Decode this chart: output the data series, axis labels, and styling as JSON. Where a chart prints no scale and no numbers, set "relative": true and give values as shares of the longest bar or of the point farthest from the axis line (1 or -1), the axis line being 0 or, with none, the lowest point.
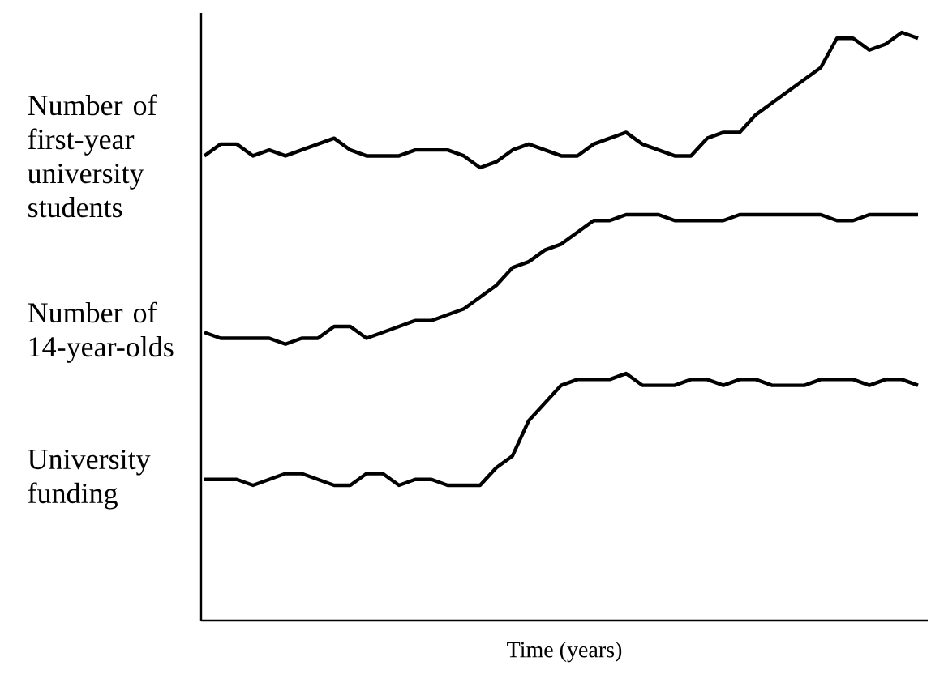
{
  "chart_data": {
    "type": "line",
    "xlabel": "Time (years)",
    "relative": true,
    "tick_labels": false,
    "categories": [
      null,
      null,
      null,
      null,
      null,
      null,
      null,
      null,
      null,
      null,
      null,
      null,
      null,
      null,
      null,
      null,
      null,
      null,
      null,
      null,
      null,
      null,
      null,
      null,
      null,
      null,
      null,
      null,
      null,
      null,
      null,
      null,
      null,
      null,
      null,
      null,
      null,
      null,
      null,
      null,
      null,
      null,
      null,
      null,
      null
    ],
    "series": [
      {
        "name": "Number of first-year university students",
        "color": "#000000",
        "values": [
          0.79,
          0.81,
          0.81,
          0.79,
          0.8,
          0.79,
          0.8,
          0.81,
          0.82,
          0.8,
          0.79,
          0.79,
          0.79,
          0.8,
          0.8,
          0.8,
          0.79,
          0.77,
          0.78,
          0.8,
          0.81,
          0.8,
          0.79,
          0.79,
          0.81,
          0.82,
          0.83,
          0.81,
          0.8,
          0.79,
          0.79,
          0.82,
          0.83,
          0.83,
          0.86,
          0.88,
          0.9,
          0.92,
          0.94,
          0.99,
          0.99,
          0.97,
          0.98,
          1.0,
          0.99
        ]
      },
      {
        "name": "Number of 14-year-olds",
        "color": "#000000",
        "values": [
          0.49,
          0.48,
          0.48,
          0.48,
          0.48,
          0.47,
          0.48,
          0.48,
          0.5,
          0.5,
          0.48,
          0.49,
          0.5,
          0.51,
          0.51,
          0.52,
          0.53,
          0.55,
          0.57,
          0.6,
          0.61,
          0.63,
          0.64,
          0.66,
          0.68,
          0.68,
          0.69,
          0.69,
          0.69,
          0.68,
          0.68,
          0.68,
          0.68,
          0.69,
          0.69,
          0.69,
          0.69,
          0.69,
          0.69,
          0.68,
          0.68,
          0.69,
          0.69,
          0.69,
          0.69
        ]
      },
      {
        "name": "University funding",
        "color": "#000000",
        "values": [
          0.24,
          0.24,
          0.24,
          0.23,
          0.24,
          0.25,
          0.25,
          0.24,
          0.23,
          0.23,
          0.25,
          0.25,
          0.23,
          0.24,
          0.24,
          0.23,
          0.23,
          0.23,
          0.26,
          0.28,
          0.34,
          0.37,
          0.4,
          0.41,
          0.41,
          0.41,
          0.42,
          0.4,
          0.4,
          0.4,
          0.41,
          0.41,
          0.4,
          0.41,
          0.41,
          0.4,
          0.4,
          0.4,
          0.41,
          0.41,
          0.41,
          0.4,
          0.41,
          0.41,
          0.4
        ]
      }
    ]
  }
}
